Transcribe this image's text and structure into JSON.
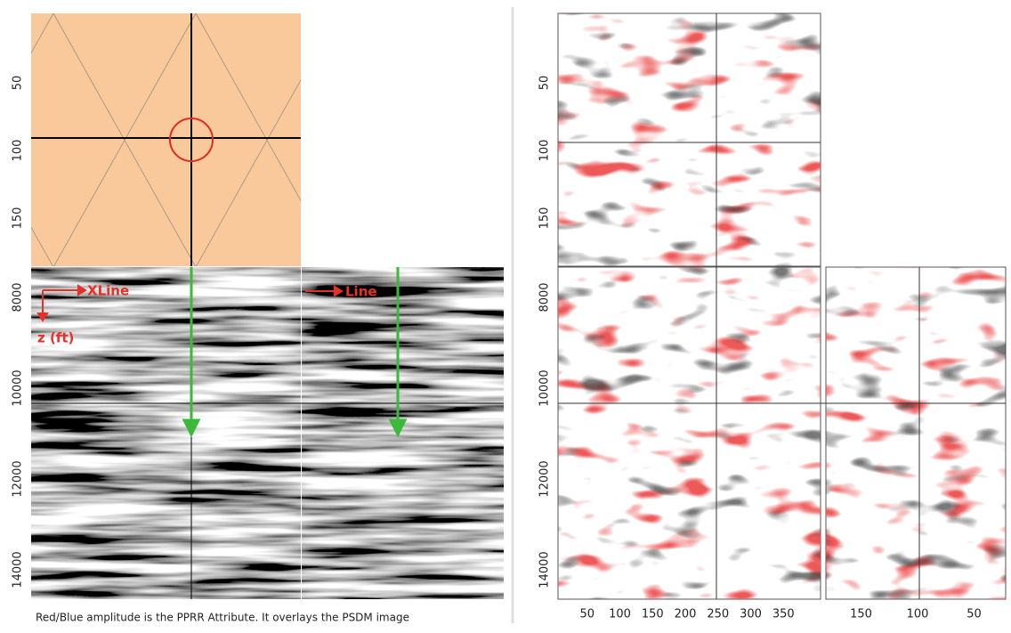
{
  "left": {
    "map_yticks": [
      50,
      100,
      150
    ],
    "depth_yticks": [
      8000,
      10000,
      12000,
      14000
    ],
    "annotations": {
      "xline": "XLine",
      "line": "Line",
      "depth": "z (ft)"
    },
    "caption": "Red/Blue amplitude is the PPRR Attribute.  It overlays the PSDM image"
  },
  "right": {
    "map_yticks": [
      50,
      100,
      150
    ],
    "depth_yticks": [
      8000,
      10000,
      12000,
      14000
    ],
    "xline_xticks": [
      50,
      100,
      150,
      200,
      250,
      300,
      350
    ],
    "line_xticks": [
      150,
      100,
      50
    ]
  }
}
